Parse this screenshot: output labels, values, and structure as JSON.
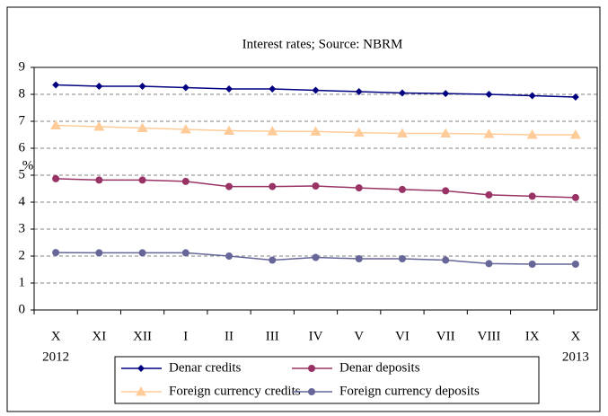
{
  "chart_data": {
    "type": "line",
    "title": "Interest rates; Source: NBRM",
    "y_label": "%",
    "categories": [
      "X",
      "XI",
      "XII",
      "I",
      "II",
      "III",
      "IV",
      "V",
      "VI",
      "VII",
      "VIII",
      "IX",
      "X"
    ],
    "years": [
      "2012",
      null,
      null,
      null,
      null,
      null,
      null,
      null,
      null,
      null,
      null,
      null,
      "2013"
    ],
    "ylim": [
      0,
      9
    ],
    "yticks": [
      0,
      1,
      2,
      3,
      4,
      5,
      6,
      7,
      8,
      9
    ],
    "grid": true,
    "series": [
      {
        "name": "Denar credits",
        "color": "#000080",
        "marker": "diamond",
        "values": [
          8.35,
          8.3,
          8.3,
          8.25,
          8.2,
          8.2,
          8.15,
          8.1,
          8.05,
          8.03,
          8.0,
          7.95,
          7.9
        ]
      },
      {
        "name": "Denar deposits",
        "color": "#993366",
        "marker": "circle",
        "values": [
          4.87,
          4.82,
          4.82,
          4.77,
          4.58,
          4.58,
          4.6,
          4.53,
          4.47,
          4.42,
          4.27,
          4.22,
          4.17
        ]
      },
      {
        "name": "Foreign currency credits",
        "color": "#ffcc99",
        "marker": "triangle",
        "values": [
          6.85,
          6.8,
          6.75,
          6.7,
          6.65,
          6.63,
          6.62,
          6.58,
          6.55,
          6.55,
          6.53,
          6.5,
          6.5
        ]
      },
      {
        "name": "Foreign currency deposits",
        "color": "#666699",
        "marker": "circle",
        "values": [
          2.13,
          2.12,
          2.12,
          2.12,
          2.0,
          1.85,
          1.95,
          1.9,
          1.9,
          1.85,
          1.72,
          1.7,
          1.7
        ]
      }
    ]
  }
}
